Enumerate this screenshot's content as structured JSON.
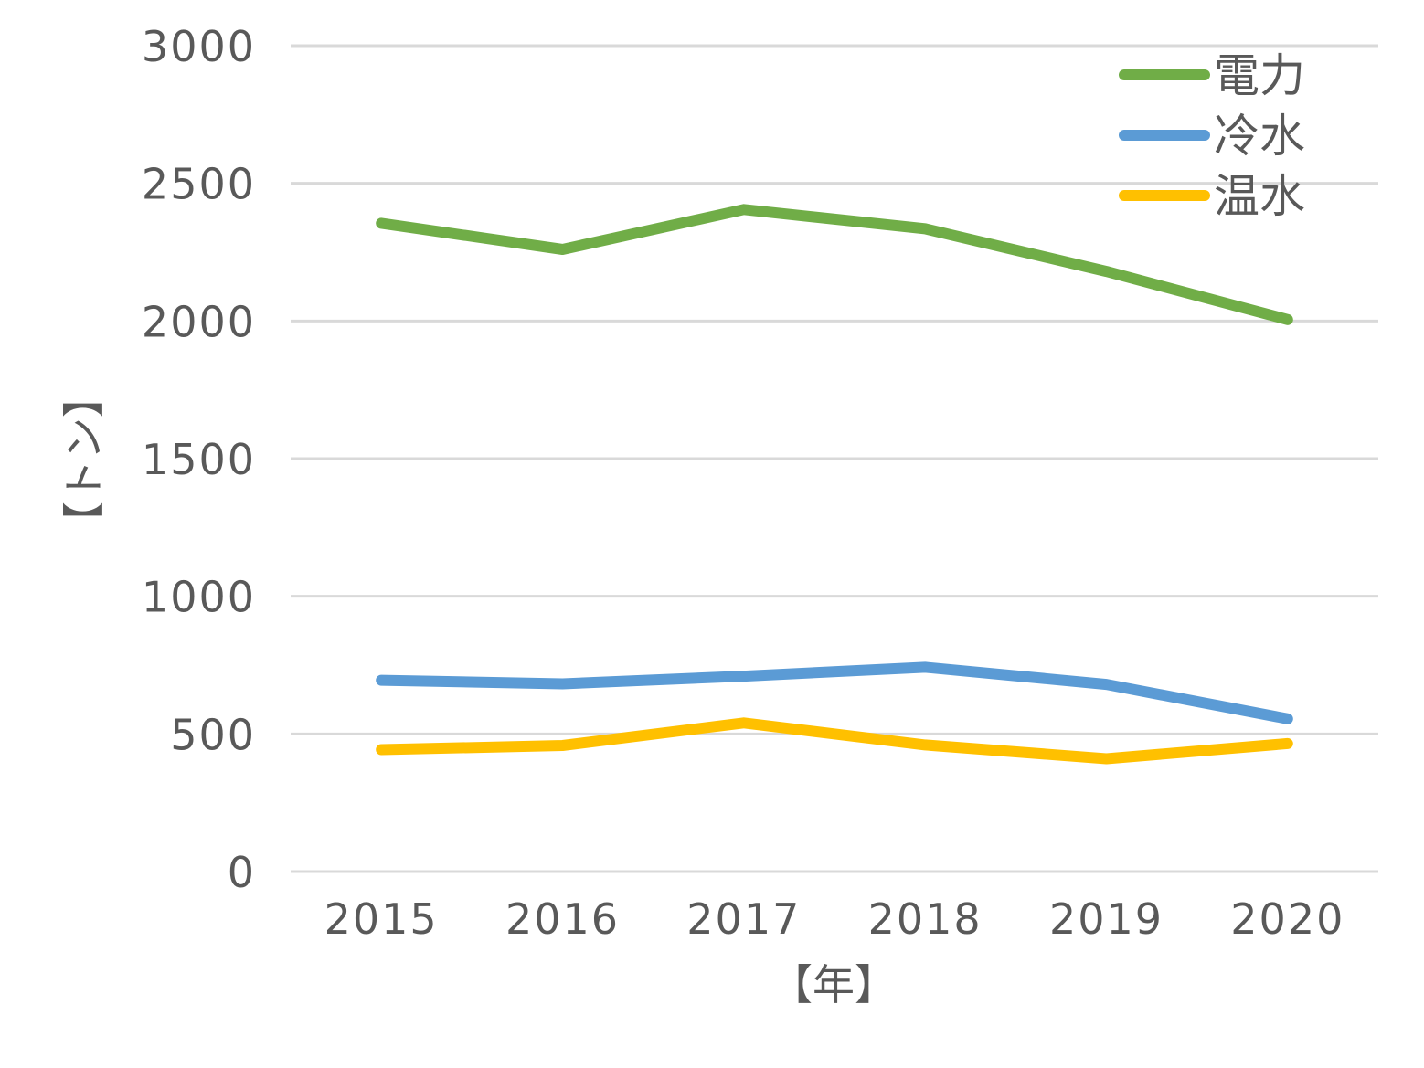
{
  "chart_data": {
    "type": "line",
    "title": "",
    "xlabel": "【年】",
    "ylabel": "【トン】",
    "categories": [
      "2015",
      "2016",
      "2017",
      "2018",
      "2019",
      "2020"
    ],
    "ylim": [
      0,
      3000
    ],
    "yticks": [
      0,
      500,
      1000,
      1500,
      2000,
      2500,
      3000
    ],
    "grid": true,
    "legend_position": "top-right",
    "series": [
      {
        "name": "電力",
        "color": "#70ad47",
        "values": [
          2355,
          2260,
          2405,
          2335,
          2180,
          2005
        ]
      },
      {
        "name": "冷水",
        "color": "#5b9bd5",
        "values": [
          695,
          682,
          710,
          742,
          680,
          555
        ]
      },
      {
        "name": "温水",
        "color": "#ffc000",
        "values": [
          443,
          458,
          540,
          460,
          410,
          465
        ]
      }
    ]
  }
}
